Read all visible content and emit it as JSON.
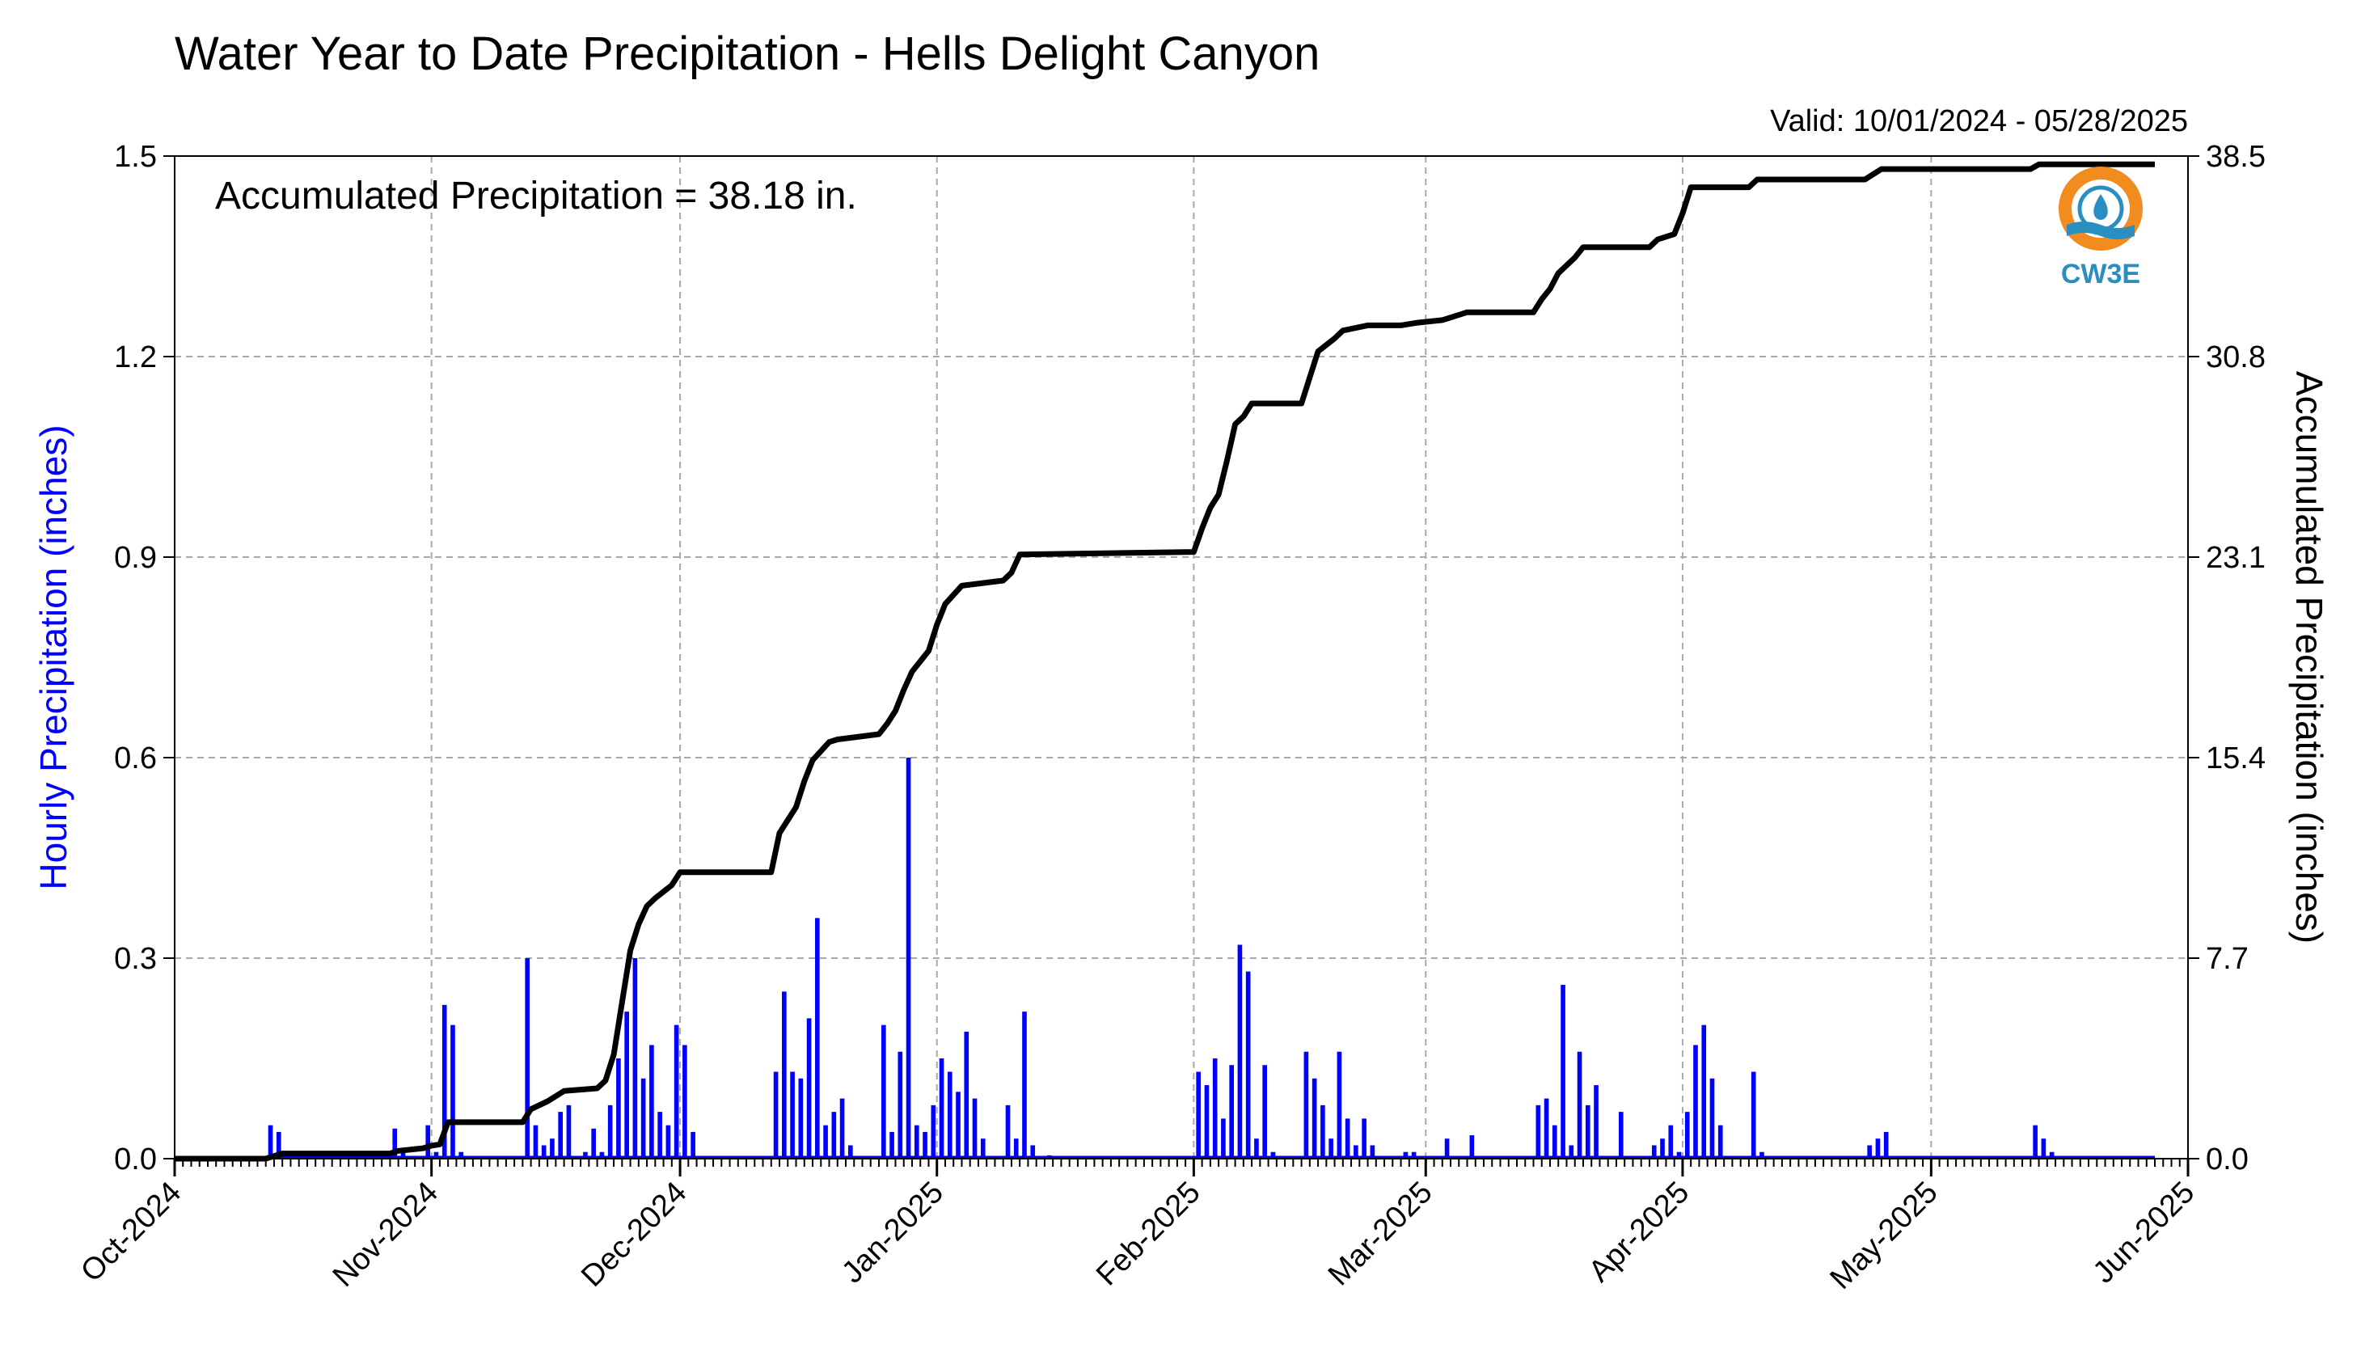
{
  "chart_data": {
    "type": "bar+line",
    "title": "Water Year to Date Precipitation - Hells Delight Canyon",
    "subtitle": "Valid: 10/01/2024 - 05/28/2025",
    "annotation": "Accumulated Precipitation = 38.18 in.",
    "ylabel_left": "Hourly Precipitation (inches)",
    "ylabel_right": "Accumulated Precipitation (inches)",
    "left_axis": {
      "ylim": [
        0,
        1.5
      ],
      "ticks": [
        "0.0",
        "0.3",
        "0.6",
        "0.9",
        "1.2",
        "1.5"
      ]
    },
    "right_axis": {
      "ylim": [
        0,
        38.5
      ],
      "ticks": [
        "0.0",
        "7.7",
        "15.4",
        "23.1",
        "30.8",
        "38.5"
      ]
    },
    "x_axis": {
      "range": [
        "2024-10-01",
        "2025-06-01"
      ],
      "ticks": [
        {
          "date": "2024-10-01",
          "label": "Oct-2024"
        },
        {
          "date": "2024-11-01",
          "label": "Nov-2024"
        },
        {
          "date": "2024-12-01",
          "label": "Dec-2024"
        },
        {
          "date": "2025-01-01",
          "label": "Jan-2025"
        },
        {
          "date": "2025-02-01",
          "label": "Feb-2025"
        },
        {
          "date": "2025-03-01",
          "label": "Mar-2025"
        },
        {
          "date": "2025-04-01",
          "label": "Apr-2025"
        },
        {
          "date": "2025-05-01",
          "label": "May-2025"
        },
        {
          "date": "2025-06-01",
          "label": "Jun-2025"
        }
      ]
    },
    "grid": true,
    "colors": {
      "hourly": "#0000ff",
      "accumulated": "#000000",
      "ylabel_left": "#0000ff",
      "logo_orange": "#f28c1f",
      "logo_blue": "#2a8fc0"
    },
    "logo_text": "CW3E",
    "series": [
      {
        "name": "Hourly Precipitation",
        "kind": "bar",
        "axis": "left",
        "points": [
          [
            "2024-10-12",
            0.05
          ],
          [
            "2024-10-13",
            0.04
          ],
          [
            "2024-10-14",
            0.01
          ],
          [
            "2024-10-27",
            0.045
          ],
          [
            "2024-10-28",
            0.01
          ],
          [
            "2024-10-31",
            0.05
          ],
          [
            "2024-11-01",
            0.01
          ],
          [
            "2024-11-02",
            0.23
          ],
          [
            "2024-11-03",
            0.2
          ],
          [
            "2024-11-04",
            0.01
          ],
          [
            "2024-11-12",
            0.3
          ],
          [
            "2024-11-13",
            0.05
          ],
          [
            "2024-11-14",
            0.02
          ],
          [
            "2024-11-15",
            0.03
          ],
          [
            "2024-11-16",
            0.07
          ],
          [
            "2024-11-17",
            0.08
          ],
          [
            "2024-11-19",
            0.01
          ],
          [
            "2024-11-20",
            0.045
          ],
          [
            "2024-11-21",
            0.01
          ],
          [
            "2024-11-22",
            0.08
          ],
          [
            "2024-11-23",
            0.15
          ],
          [
            "2024-11-24",
            0.22
          ],
          [
            "2024-11-25",
            0.3
          ],
          [
            "2024-11-26",
            0.12
          ],
          [
            "2024-11-27",
            0.17
          ],
          [
            "2024-11-28",
            0.07
          ],
          [
            "2024-11-29",
            0.05
          ],
          [
            "2024-11-30",
            0.2
          ],
          [
            "2024-12-01",
            0.17
          ],
          [
            "2024-12-02",
            0.04
          ],
          [
            "2024-12-12",
            0.13
          ],
          [
            "2024-12-13",
            0.25
          ],
          [
            "2024-12-14",
            0.13
          ],
          [
            "2024-12-15",
            0.12
          ],
          [
            "2024-12-16",
            0.21
          ],
          [
            "2024-12-17",
            0.36
          ],
          [
            "2024-12-18",
            0.05
          ],
          [
            "2024-12-19",
            0.07
          ],
          [
            "2024-12-20",
            0.09
          ],
          [
            "2024-12-21",
            0.02
          ],
          [
            "2024-12-25",
            0.2
          ],
          [
            "2024-12-26",
            0.04
          ],
          [
            "2024-12-27",
            0.16
          ],
          [
            "2024-12-28",
            0.6
          ],
          [
            "2024-12-29",
            0.05
          ],
          [
            "2024-12-30",
            0.04
          ],
          [
            "2024-12-31",
            0.08
          ],
          [
            "2025-01-01",
            0.15
          ],
          [
            "2025-01-02",
            0.13
          ],
          [
            "2025-01-03",
            0.1
          ],
          [
            "2025-01-04",
            0.19
          ],
          [
            "2025-01-05",
            0.09
          ],
          [
            "2025-01-06",
            0.03
          ],
          [
            "2025-01-09",
            0.08
          ],
          [
            "2025-01-10",
            0.03
          ],
          [
            "2025-01-11",
            0.22
          ],
          [
            "2025-01-12",
            0.02
          ],
          [
            "2025-01-14",
            0.005
          ],
          [
            "2025-02-01",
            0.13
          ],
          [
            "2025-02-02",
            0.11
          ],
          [
            "2025-02-03",
            0.15
          ],
          [
            "2025-02-04",
            0.06
          ],
          [
            "2025-02-05",
            0.14
          ],
          [
            "2025-02-06",
            0.32
          ],
          [
            "2025-02-07",
            0.28
          ],
          [
            "2025-02-08",
            0.03
          ],
          [
            "2025-02-09",
            0.14
          ],
          [
            "2025-02-10",
            0.01
          ],
          [
            "2025-02-14",
            0.16
          ],
          [
            "2025-02-15",
            0.12
          ],
          [
            "2025-02-16",
            0.08
          ],
          [
            "2025-02-17",
            0.03
          ],
          [
            "2025-02-18",
            0.16
          ],
          [
            "2025-02-19",
            0.06
          ],
          [
            "2025-02-20",
            0.02
          ],
          [
            "2025-02-21",
            0.06
          ],
          [
            "2025-02-22",
            0.02
          ],
          [
            "2025-02-26",
            0.01
          ],
          [
            "2025-02-27",
            0.01
          ],
          [
            "2025-03-03",
            0.03
          ],
          [
            "2025-03-06",
            0.035
          ],
          [
            "2025-03-14",
            0.08
          ],
          [
            "2025-03-15",
            0.09
          ],
          [
            "2025-03-16",
            0.05
          ],
          [
            "2025-03-17",
            0.26
          ],
          [
            "2025-03-18",
            0.02
          ],
          [
            "2025-03-19",
            0.16
          ],
          [
            "2025-03-20",
            0.08
          ],
          [
            "2025-03-21",
            0.11
          ],
          [
            "2025-03-24",
            0.07
          ],
          [
            "2025-03-28",
            0.02
          ],
          [
            "2025-03-29",
            0.03
          ],
          [
            "2025-03-30",
            0.05
          ],
          [
            "2025-03-31",
            0.01
          ],
          [
            "2025-04-01",
            0.07
          ],
          [
            "2025-04-02",
            0.17
          ],
          [
            "2025-04-03",
            0.2
          ],
          [
            "2025-04-04",
            0.12
          ],
          [
            "2025-04-05",
            0.05
          ],
          [
            "2025-04-09",
            0.13
          ],
          [
            "2025-04-10",
            0.01
          ],
          [
            "2025-04-23",
            0.02
          ],
          [
            "2025-04-24",
            0.03
          ],
          [
            "2025-04-25",
            0.04
          ],
          [
            "2025-05-13",
            0.05
          ],
          [
            "2025-05-14",
            0.03
          ],
          [
            "2025-05-15",
            0.01
          ]
        ]
      },
      {
        "name": "Accumulated Precipitation",
        "kind": "step-line",
        "axis": "right",
        "points": [
          [
            "2024-10-01",
            0.0
          ],
          [
            "2024-10-12",
            0.0
          ],
          [
            "2024-10-14",
            0.2
          ],
          [
            "2024-10-27",
            0.2
          ],
          [
            "2024-10-28",
            0.3
          ],
          [
            "2024-10-31",
            0.4
          ],
          [
            "2024-11-01",
            0.5
          ],
          [
            "2024-11-02",
            0.55
          ],
          [
            "2024-11-03",
            1.4
          ],
          [
            "2024-11-12",
            1.4
          ],
          [
            "2024-11-13",
            1.9
          ],
          [
            "2024-11-15",
            2.2
          ],
          [
            "2024-11-17",
            2.6
          ],
          [
            "2024-11-21",
            2.7
          ],
          [
            "2024-11-22",
            3.0
          ],
          [
            "2024-11-23",
            4.0
          ],
          [
            "2024-11-24",
            6.0
          ],
          [
            "2024-11-25",
            8.0
          ],
          [
            "2024-11-26",
            9.0
          ],
          [
            "2024-11-27",
            9.7
          ],
          [
            "2024-11-28",
            10.0
          ],
          [
            "2024-11-30",
            10.5
          ],
          [
            "2024-12-01",
            11.0
          ],
          [
            "2024-12-12",
            11.0
          ],
          [
            "2024-12-13",
            12.5
          ],
          [
            "2024-12-15",
            13.5
          ],
          [
            "2024-12-16",
            14.5
          ],
          [
            "2024-12-17",
            15.3
          ],
          [
            "2024-12-19",
            16.0
          ],
          [
            "2024-12-20",
            16.1
          ],
          [
            "2024-12-25",
            16.3
          ],
          [
            "2024-12-26",
            16.7
          ],
          [
            "2024-12-27",
            17.2
          ],
          [
            "2024-12-28",
            18.0
          ],
          [
            "2024-12-29",
            18.7
          ],
          [
            "2024-12-31",
            19.5
          ],
          [
            "2025-01-01",
            20.5
          ],
          [
            "2025-01-02",
            21.3
          ],
          [
            "2025-01-04",
            22.0
          ],
          [
            "2025-01-09",
            22.2
          ],
          [
            "2025-01-10",
            22.5
          ],
          [
            "2025-01-11",
            23.2
          ],
          [
            "2025-02-01",
            23.3
          ],
          [
            "2025-02-02",
            24.2
          ],
          [
            "2025-02-03",
            25.0
          ],
          [
            "2025-02-04",
            25.5
          ],
          [
            "2025-02-05",
            26.8
          ],
          [
            "2025-02-06",
            28.2
          ],
          [
            "2025-02-07",
            28.5
          ],
          [
            "2025-02-08",
            29.0
          ],
          [
            "2025-02-14",
            29.0
          ],
          [
            "2025-02-15",
            30.0
          ],
          [
            "2025-02-16",
            31.0
          ],
          [
            "2025-02-18",
            31.5
          ],
          [
            "2025-02-19",
            31.8
          ],
          [
            "2025-02-22",
            32.0
          ],
          [
            "2025-02-26",
            32.0
          ],
          [
            "2025-02-28",
            32.1
          ],
          [
            "2025-03-03",
            32.2
          ],
          [
            "2025-03-06",
            32.5
          ],
          [
            "2025-03-14",
            32.5
          ],
          [
            "2025-03-15",
            33.0
          ],
          [
            "2025-03-16",
            33.4
          ],
          [
            "2025-03-17",
            34.0
          ],
          [
            "2025-03-19",
            34.6
          ],
          [
            "2025-03-20",
            35.0
          ],
          [
            "2025-03-21",
            35.0
          ],
          [
            "2025-03-28",
            35.0
          ],
          [
            "2025-03-29",
            35.3
          ],
          [
            "2025-03-31",
            35.5
          ],
          [
            "2025-04-01",
            36.3
          ],
          [
            "2025-04-02",
            37.3
          ],
          [
            "2025-04-09",
            37.3
          ],
          [
            "2025-04-10",
            37.6
          ],
          [
            "2025-04-23",
            37.6
          ],
          [
            "2025-04-25",
            38.0
          ],
          [
            "2025-05-13",
            38.0
          ],
          [
            "2025-05-14",
            38.18
          ],
          [
            "2025-05-28",
            38.18
          ]
        ]
      }
    ]
  }
}
